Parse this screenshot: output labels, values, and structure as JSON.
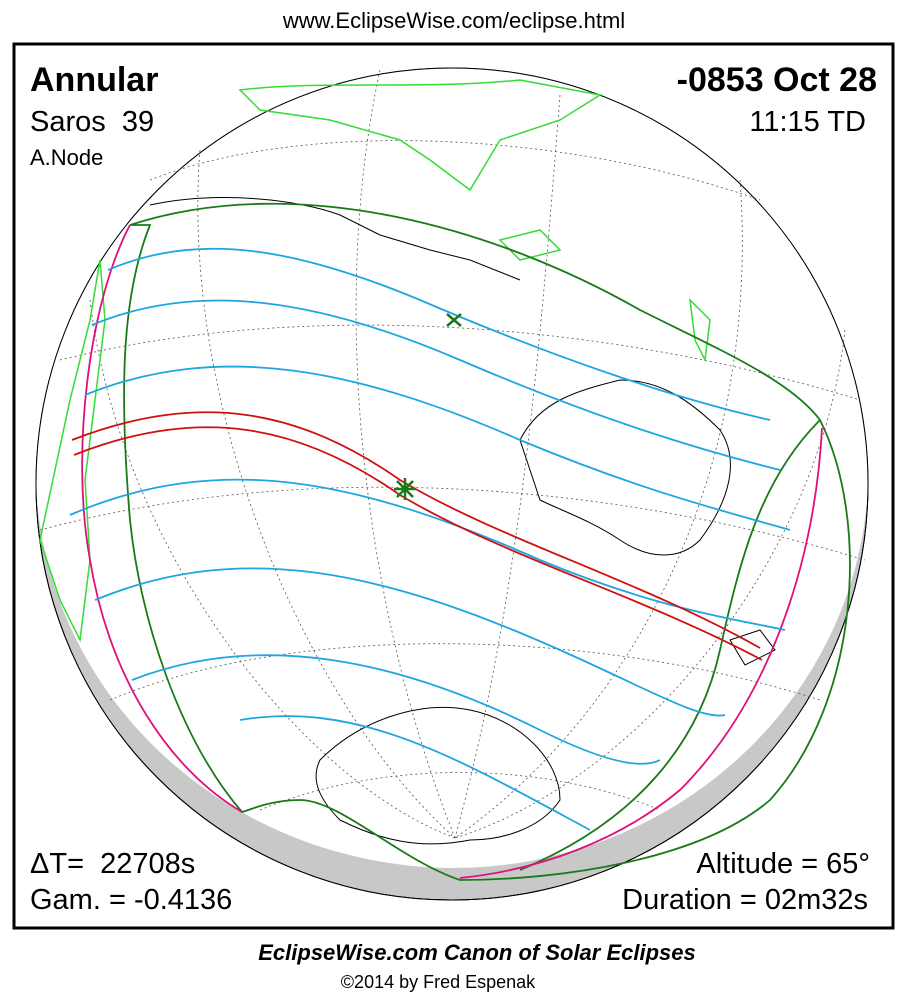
{
  "header": {
    "url": "www.EclipseWise.com/eclipse.html"
  },
  "panel": {
    "eclipse_type": "Annular",
    "saros": "Saros  39",
    "node": "A.Node",
    "date": "-0853 Oct 28",
    "time": "11:15 TD",
    "delta_t": "ΔT=  22708s",
    "gamma": "Gam. = -0.4136",
    "altitude": "Altitude = 65°",
    "duration": "Duration = 02m32s"
  },
  "footer": {
    "title": "EclipseWise.com Canon of Solar Eclipses",
    "credit": "©2014 by Fred Espenak"
  }
}
